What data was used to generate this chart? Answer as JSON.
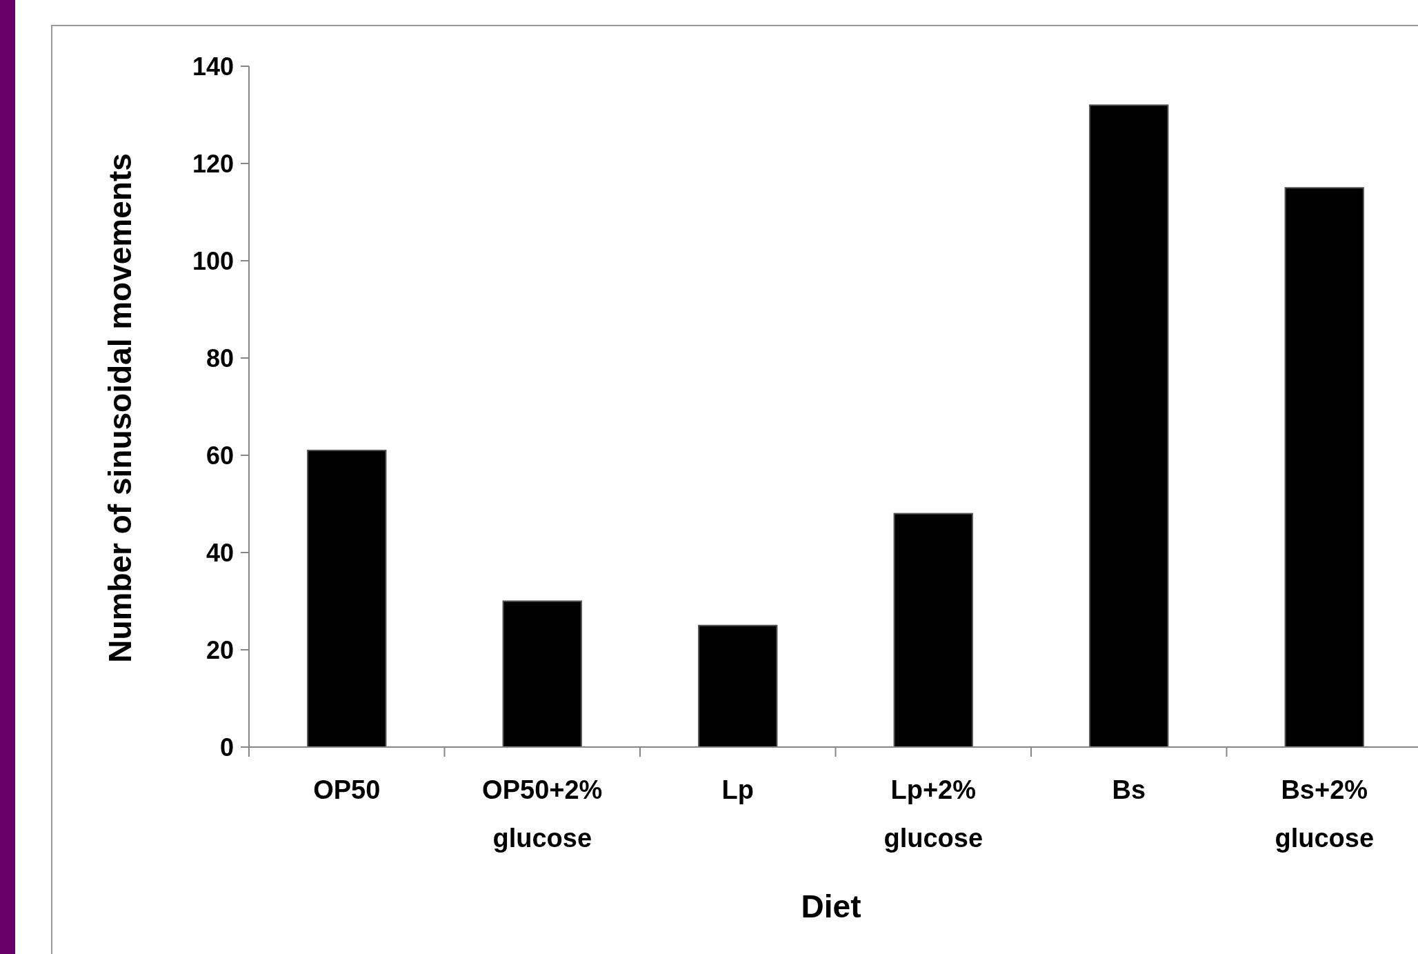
{
  "chart_data": {
    "type": "bar",
    "xlabel": "Diet",
    "ylabel": "Number of sinusoidal movements",
    "categories": [
      "OP50",
      "OP50+2% glucose",
      "Lp",
      "Lp+2% glucose",
      "Bs",
      "Bs+2% glucose"
    ],
    "values": [
      61,
      30,
      25,
      48,
      132,
      115
    ],
    "color": "#000000",
    "ylim": [
      0,
      140
    ],
    "yticks": [
      0,
      20,
      40,
      60,
      80,
      100,
      120,
      140
    ],
    "grid": false
  }
}
